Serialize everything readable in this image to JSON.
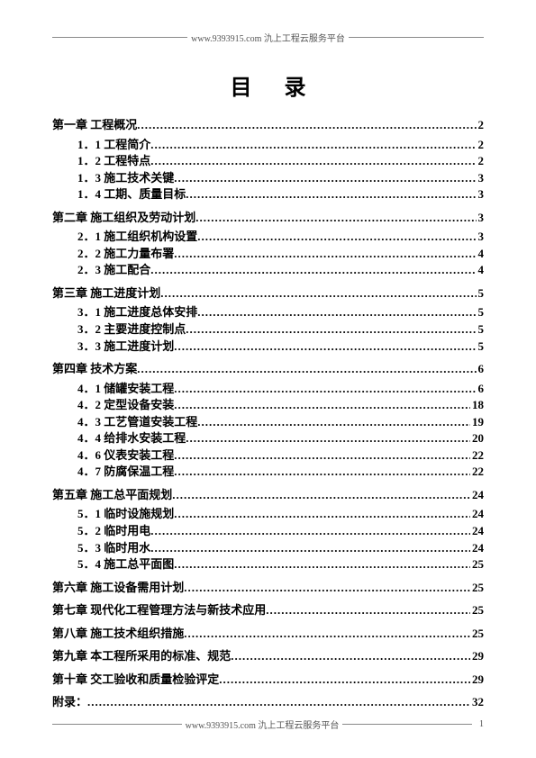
{
  "header": {
    "text": "www.9393915.com 氿上工程云服务平台"
  },
  "title": "目录",
  "toc": [
    {
      "type": "chapter",
      "label": "第一章  工程概况",
      "page": "2"
    },
    {
      "type": "sub",
      "label": "1．1 工程简介",
      "page": "2"
    },
    {
      "type": "sub",
      "label": "1．2 工程特点",
      "page": "2"
    },
    {
      "type": "sub",
      "label": "1．3 施工技术关键",
      "page": "3"
    },
    {
      "type": "sub",
      "label": "1．4 工期、质量目标",
      "page": "3"
    },
    {
      "type": "chapter",
      "label": "第二章  施工组织及劳动计划",
      "page": "3"
    },
    {
      "type": "sub",
      "label": "2．1 施工组织机构设置",
      "page": "3"
    },
    {
      "type": "sub",
      "label": "2．2 施工力量布署",
      "page": "4"
    },
    {
      "type": "sub",
      "label": "2．3 施工配合",
      "page": "4"
    },
    {
      "type": "chapter",
      "label": "第三章  施工进度计划",
      "page": "5"
    },
    {
      "type": "sub",
      "label": "3．1 施工进度总体安排",
      "page": "5"
    },
    {
      "type": "sub",
      "label": "3．2 主要进度控制点",
      "page": "5"
    },
    {
      "type": "sub",
      "label": "3．3 施工进度计划",
      "page": "5"
    },
    {
      "type": "chapter",
      "label": "第四章  技术方案",
      "page": "6"
    },
    {
      "type": "sub",
      "label": "4．1 储罐安装工程",
      "page": "6"
    },
    {
      "type": "sub",
      "label": "4．2 定型设备安装",
      "page": "18"
    },
    {
      "type": "sub",
      "label": "4．3 工艺管道安装工程",
      "page": "19"
    },
    {
      "type": "sub",
      "label": "4．4 给排水安装工程",
      "page": "20"
    },
    {
      "type": "sub",
      "label": "4．6 仪表安装工程",
      "page": "22"
    },
    {
      "type": "sub",
      "label": "4．7 防腐保温工程",
      "page": "22"
    },
    {
      "type": "chapter",
      "label": "第五章  施工总平面规划",
      "page": "24"
    },
    {
      "type": "sub",
      "label": "5．1 临时设施规划",
      "page": "24"
    },
    {
      "type": "sub",
      "label": "5．2 临时用电",
      "page": "24"
    },
    {
      "type": "sub",
      "label": "5．3 临时用水",
      "page": "24"
    },
    {
      "type": "sub",
      "label": "5．4 施工总平面图",
      "page": "25"
    },
    {
      "type": "chapter",
      "label": "第六章  施工设备需用计划",
      "page": "25"
    },
    {
      "type": "chapter",
      "label": "第七章  现代化工程管理方法与新技术应用",
      "page": "25"
    },
    {
      "type": "chapter",
      "label": "第八章  施工技术组织措施",
      "page": "25"
    },
    {
      "type": "chapter",
      "label": "第九章  本工程所采用的标准、规范",
      "page": "29"
    },
    {
      "type": "chapter",
      "label": "第十章  交工验收和质量检验评定",
      "page": "29"
    },
    {
      "type": "chapter",
      "label": "附录：",
      "page": "32"
    }
  ],
  "footer": {
    "text": "www.9393915.com 氿上工程云服务平台",
    "page_number": "1"
  }
}
